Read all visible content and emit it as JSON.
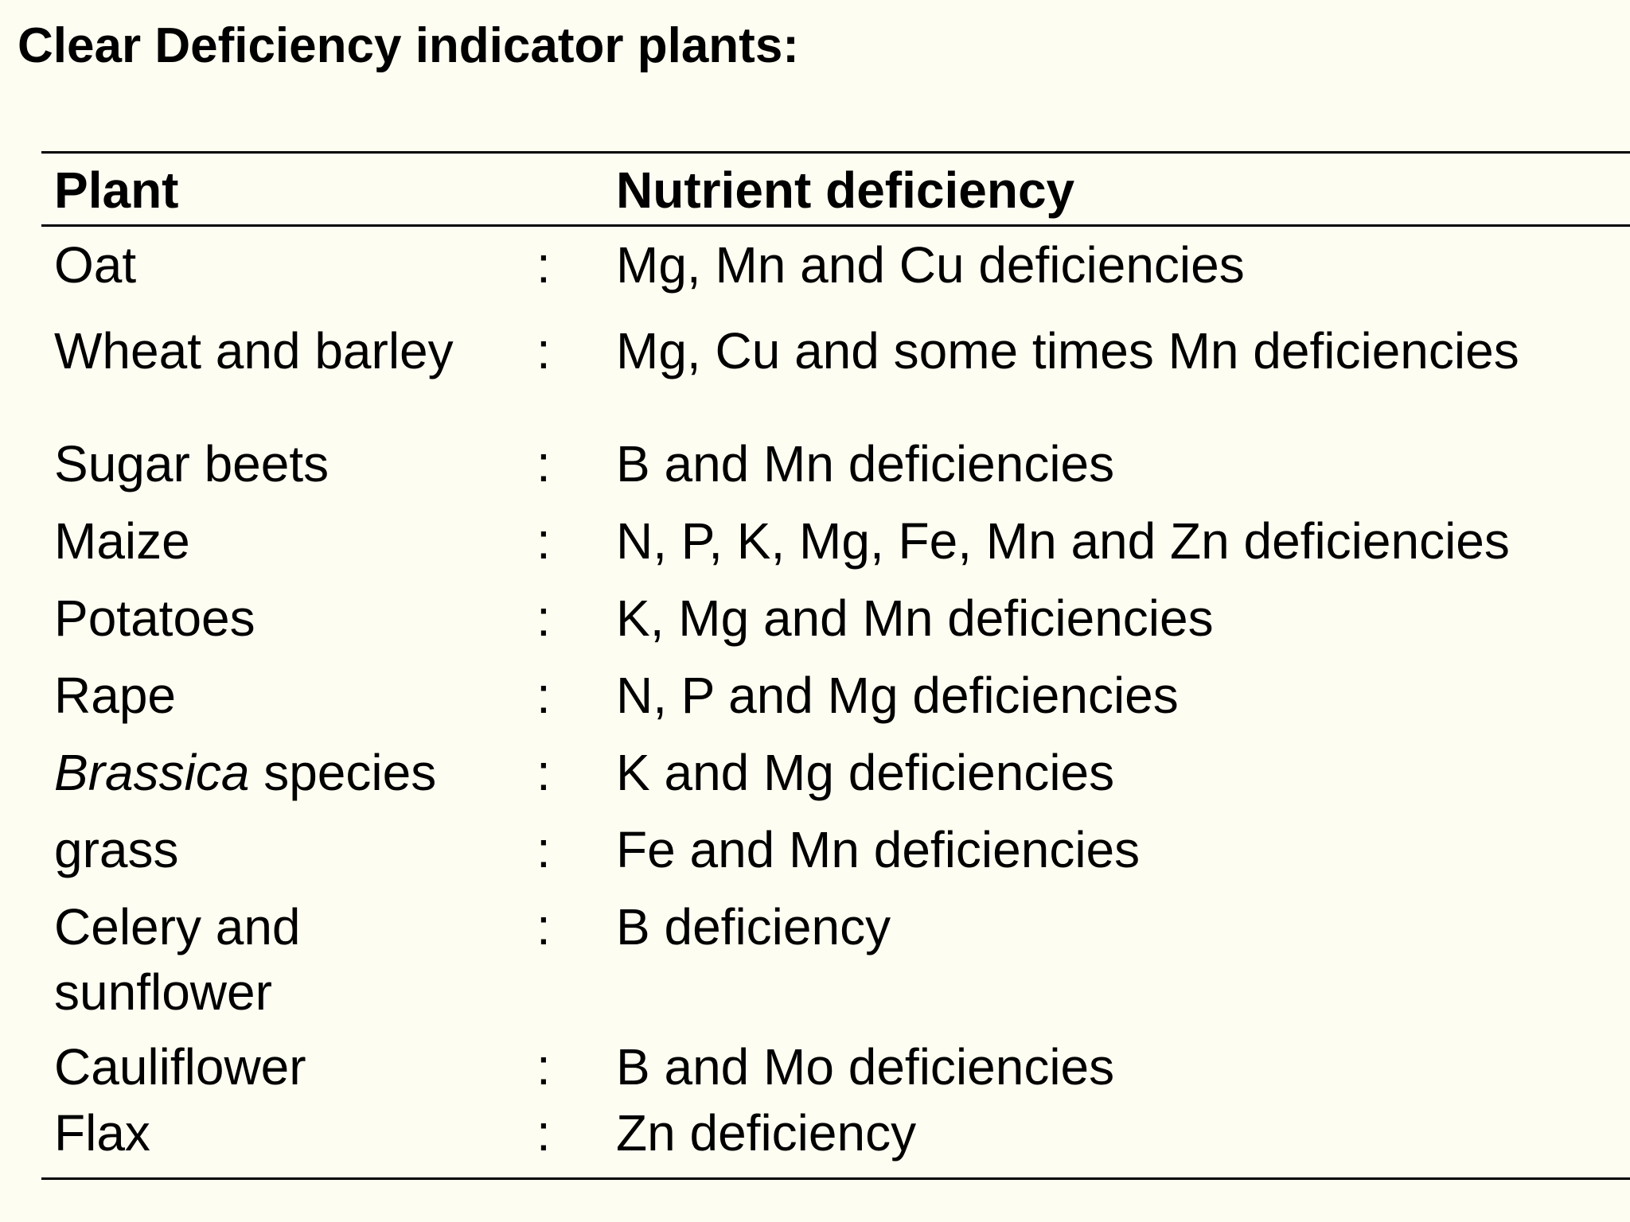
{
  "title": "Clear Deficiency indicator plants:",
  "table": {
    "headers": {
      "plant": "Plant",
      "deficiency": "Nutrient deficiency"
    },
    "separator": ":",
    "rows": [
      {
        "plant": "Oat",
        "deficiency": "Mg, Mn and Cu deficiencies"
      },
      {
        "plant": "Wheat and barley",
        "deficiency": "Mg, Cu and some times Mn deficiencies"
      },
      {
        "plant": "Sugar beets",
        "deficiency": "B and Mn deficiencies"
      },
      {
        "plant": "Maize",
        "deficiency": "N, P, K, Mg, Fe, Mn and Zn deficiencies"
      },
      {
        "plant": "Potatoes",
        "deficiency": "K, Mg and Mn deficiencies"
      },
      {
        "plant": "Rape",
        "deficiency": "N, P and Mg deficiencies"
      },
      {
        "plant_italic": "Brassica",
        "plant_rest": " species",
        "deficiency": "K and Mg deficiencies"
      },
      {
        "plant": "grass",
        "deficiency": "Fe and Mn deficiencies"
      },
      {
        "plant_line1": "Celery and",
        "plant_line2": "sunflower",
        "deficiency": "B deficiency"
      },
      {
        "plant": "Cauliflower",
        "deficiency": "B and Mo deficiencies"
      },
      {
        "plant": "Flax",
        "deficiency": "Zn deficiency"
      }
    ]
  }
}
